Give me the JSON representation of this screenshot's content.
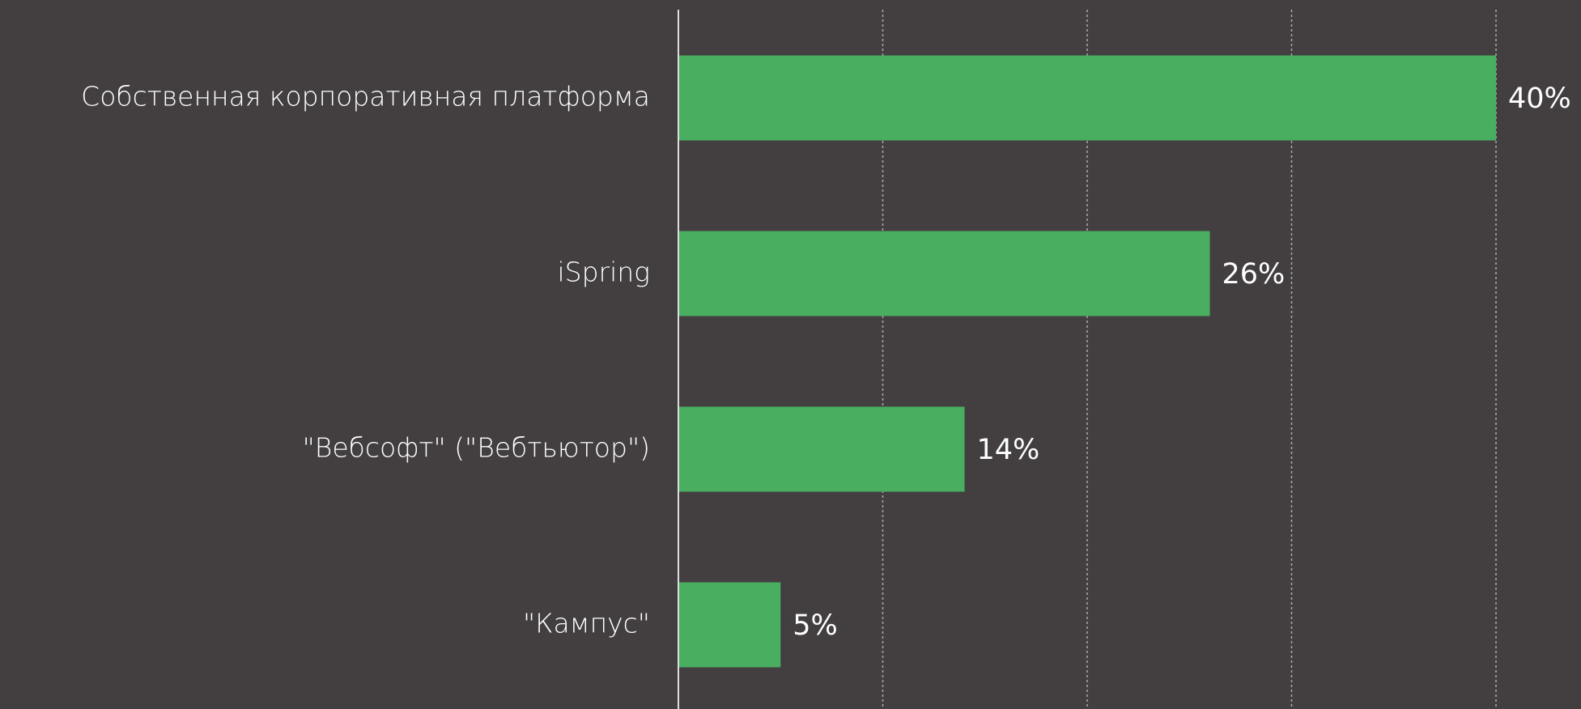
{
  "chart_data": {
    "type": "bar",
    "orientation": "horizontal",
    "categories": [
      "Собственная корпоративная платформа",
      "iSpring",
      "\"Вебсофт\" (\"Вебтьютор\")",
      "\"Кампус\""
    ],
    "values": [
      40,
      26,
      14,
      5
    ],
    "value_labels": [
      "40%",
      "26%",
      "14%",
      "5%"
    ],
    "color": "#4aae61",
    "xlim": [
      0,
      40
    ],
    "xticks": [
      0,
      10,
      20,
      30,
      40
    ],
    "grid": true
  }
}
